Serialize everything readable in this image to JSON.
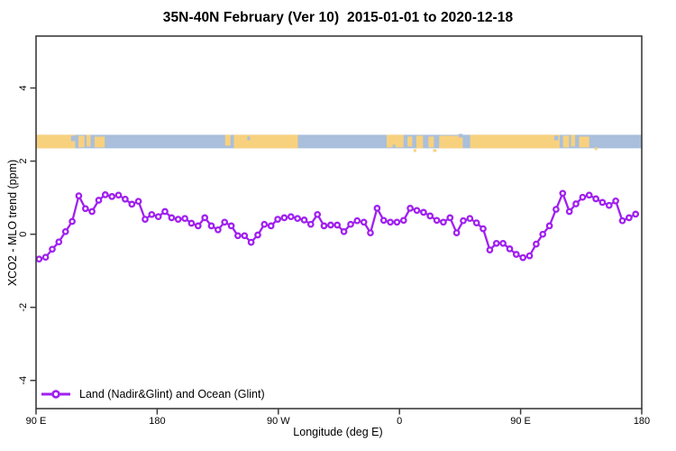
{
  "chart_data": {
    "type": "line",
    "title": "35N-40N February (Ver 10)  2015-01-01 to 2020-12-18",
    "xlabel": "Longitude (deg E)",
    "ylabel": "XCO2 - MLO trend (ppm)",
    "xlim": [
      90,
      540
    ],
    "ylim": [
      -4.77,
      5.42
    ],
    "grid": false,
    "axis_color": "#3c3c3c",
    "legend_position": "bottom-left-inside",
    "x_ticks": [
      {
        "value": 90,
        "label": "90 E"
      },
      {
        "value": 180,
        "label": "180"
      },
      {
        "value": 270,
        "label": "90 W"
      },
      {
        "value": 360,
        "label": "0"
      },
      {
        "value": 450,
        "label": "90 E"
      },
      {
        "value": 540,
        "label": "180"
      }
    ],
    "y_ticks": [
      {
        "value": -4,
        "label": "-4"
      },
      {
        "value": -2,
        "label": "-2"
      },
      {
        "value": 0,
        "label": "0"
      },
      {
        "value": 2,
        "label": "2"
      },
      {
        "value": 4,
        "label": "4"
      }
    ],
    "series": [
      {
        "name": "Land (Nadir&Glint) and Ocean (Glint)",
        "color": "#A020F0",
        "marker": "open-circle",
        "marker_fill": "#ffffff",
        "lon_start": 92.2,
        "lon_step": 4.925,
        "values": [
          -0.68,
          -0.63,
          -0.41,
          -0.21,
          0.07,
          0.35,
          1.05,
          0.7,
          0.62,
          0.93,
          1.08,
          1.03,
          1.07,
          0.96,
          0.82,
          0.9,
          0.41,
          0.54,
          0.48,
          0.62,
          0.45,
          0.41,
          0.43,
          0.3,
          0.23,
          0.45,
          0.23,
          0.12,
          0.33,
          0.23,
          -0.04,
          -0.04,
          -0.22,
          -0.02,
          0.27,
          0.23,
          0.41,
          0.45,
          0.48,
          0.43,
          0.39,
          0.27,
          0.54,
          0.23,
          0.25,
          0.25,
          0.07,
          0.27,
          0.37,
          0.33,
          0.04,
          0.71,
          0.38,
          0.33,
          0.33,
          0.38,
          0.71,
          0.65,
          0.6,
          0.5,
          0.38,
          0.33,
          0.45,
          0.04,
          0.37,
          0.43,
          0.31,
          0.15,
          -0.43,
          -0.25,
          -0.25,
          -0.4,
          -0.55,
          -0.64,
          -0.59,
          -0.27,
          0.0,
          0.23,
          0.68,
          1.12,
          0.62,
          0.83,
          1.01,
          1.07,
          0.97,
          0.87,
          0.79,
          0.91,
          0.37,
          0.45,
          0.55
        ]
      }
    ],
    "land_ocean_band": {
      "value_range": [
        2.35,
        2.72
      ],
      "land_color": "#F8D17E",
      "ocean_color": "#A9BFDB",
      "ocean_extent": [
        90,
        540
      ],
      "land_segments": [
        {
          "from": 90,
          "to": 119,
          "tin": 0,
          "bin": 0
        },
        {
          "from": 121.5,
          "to": 126,
          "tin": 1,
          "bin": 1
        },
        {
          "from": 127.5,
          "to": 130.5,
          "tin": 0,
          "bin": 2
        },
        {
          "from": 133.5,
          "to": 141,
          "tin": 2,
          "bin": 1
        },
        {
          "from": 230.5,
          "to": 234.5,
          "tin": 0,
          "bin": 3
        },
        {
          "from": 237,
          "to": 284.5,
          "tin": 0,
          "bin": 0
        },
        {
          "from": 350.5,
          "to": 363,
          "tin": 0,
          "bin": 1
        },
        {
          "from": 366,
          "to": 369.5,
          "tin": 2,
          "bin": 2
        },
        {
          "from": 372.5,
          "to": 377.5,
          "tin": 1,
          "bin": 0
        },
        {
          "from": 381.5,
          "to": 385.5,
          "tin": 2,
          "bin": 1
        },
        {
          "from": 389.5,
          "to": 407,
          "tin": 1,
          "bin": 0
        },
        {
          "from": 412.5,
          "to": 479,
          "tin": 0,
          "bin": 0
        },
        {
          "from": 481.5,
          "to": 486,
          "tin": 1,
          "bin": 1
        },
        {
          "from": 487.5,
          "to": 490.5,
          "tin": 0,
          "bin": 2
        },
        {
          "from": 493.5,
          "to": 501,
          "tin": 2,
          "bin": 1
        }
      ],
      "speckles": [
        {
          "lon": 116,
          "deg": 3,
          "dy": 1,
          "h": 6,
          "type": "ocean"
        },
        {
          "lon": 247,
          "deg": 2,
          "dy": 2,
          "h": 4,
          "type": "ocean"
        },
        {
          "lon": 355,
          "deg": 2,
          "dy": 11,
          "h": 4,
          "type": "ocean"
        },
        {
          "lon": 370.5,
          "deg": 2,
          "dy": 16,
          "h": 3,
          "type": "land"
        },
        {
          "lon": 385,
          "deg": 2.5,
          "dy": 16,
          "h": 3,
          "type": "land"
        },
        {
          "lon": 404,
          "deg": 3,
          "dy": -1,
          "h": 4,
          "type": "ocean"
        },
        {
          "lon": 475,
          "deg": 3,
          "dy": 1,
          "h": 5,
          "type": "ocean"
        },
        {
          "lon": 505,
          "deg": 2,
          "dy": 14,
          "h": 3,
          "type": "land"
        }
      ]
    }
  }
}
